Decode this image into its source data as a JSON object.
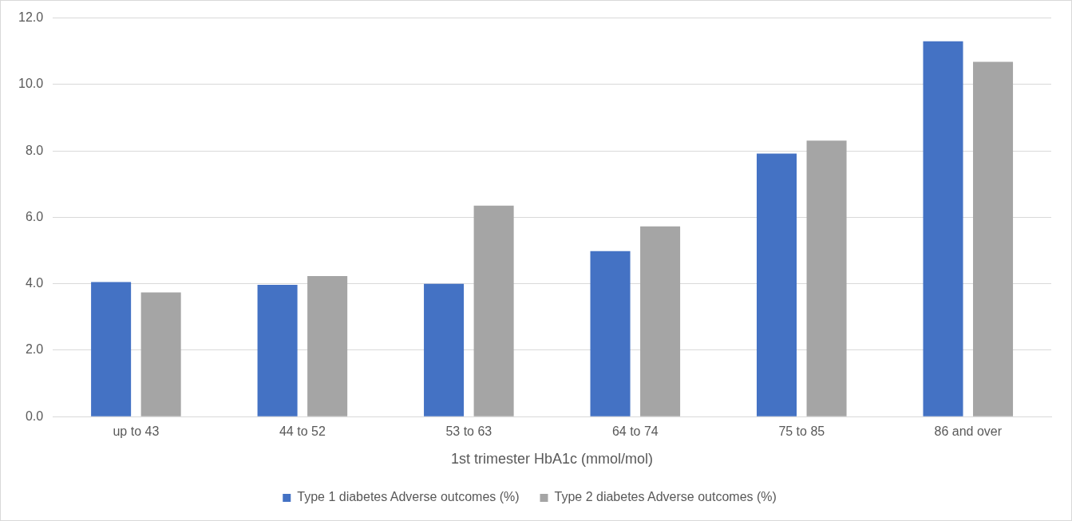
{
  "chart_data": {
    "type": "bar",
    "xlabel": "1st trimester HbA1c (mmol/mol)",
    "categories": [
      "up to 43",
      "44 to 52",
      "53 to 63",
      "64 to 74",
      "75 to 85",
      "86 and over"
    ],
    "series": [
      {
        "name": "Type 1 diabetes Adverse outcomes (%)",
        "color": "#4472c4",
        "values": [
          4.05,
          3.97,
          4.0,
          4.98,
          7.92,
          11.3
        ]
      },
      {
        "name": "Type 2 diabetes Adverse outcomes (%)",
        "color": "#a5a5a5",
        "values": [
          3.74,
          4.23,
          6.35,
          5.73,
          8.31,
          10.68
        ]
      }
    ],
    "ylim": [
      0,
      12
    ],
    "yticks": [
      {
        "value": 0,
        "label": "0.0"
      },
      {
        "value": 2,
        "label": "2.0"
      },
      {
        "value": 4,
        "label": "4.0"
      },
      {
        "value": 6,
        "label": "6.0"
      },
      {
        "value": 8,
        "label": "8.0"
      },
      {
        "value": 10,
        "label": "10.0"
      },
      {
        "value": 12,
        "label": "12.0"
      }
    ],
    "grid": "y",
    "legend": "bottom"
  }
}
